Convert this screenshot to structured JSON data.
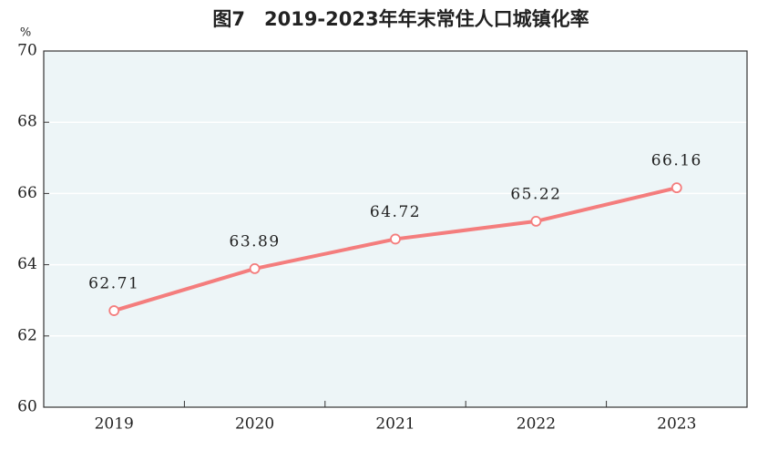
{
  "chart_data": {
    "type": "line",
    "title": "图7　2019-2023年年末常住人口城镇化率",
    "y_label": "%",
    "categories": [
      "2019",
      "2020",
      "2021",
      "2022",
      "2023"
    ],
    "values": [
      62.71,
      63.89,
      64.72,
      65.22,
      66.16
    ],
    "color": "#f47d7d",
    "ylim": [
      60,
      70
    ],
    "yticks": [
      60,
      62,
      64,
      66,
      68,
      70
    ],
    "grid": true
  }
}
